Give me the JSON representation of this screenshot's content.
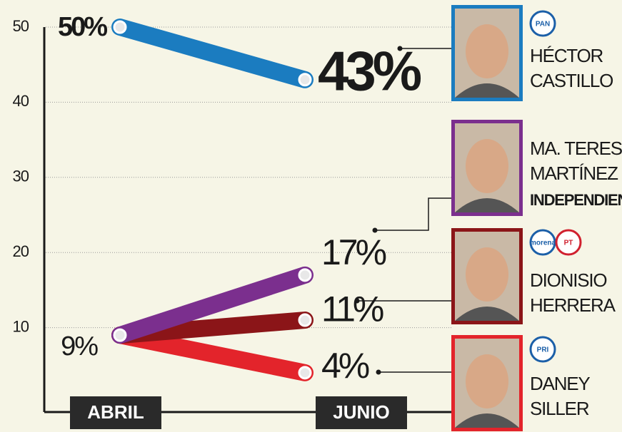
{
  "chart_data": {
    "type": "line",
    "categories": [
      "ABRIL",
      "JUNIO"
    ],
    "ylim": [
      0,
      50
    ],
    "yticks": [
      10,
      20,
      30,
      40,
      50
    ],
    "grid": true,
    "series": [
      {
        "name_lines": [
          "HÉCTOR",
          "CASTILLO"
        ],
        "logos": [
          "PAN"
        ],
        "color": "#1b7cc0",
        "values": [
          50,
          43
        ],
        "value_labels": [
          "50%",
          "43%"
        ]
      },
      {
        "name_lines": [
          "MA. TERESA",
          "MARTÍNEZ"
        ],
        "party": "INDEPENDIENTE",
        "color": "#7b2f8e",
        "values": [
          9,
          17
        ],
        "value_labels": [
          "9%",
          "17%"
        ]
      },
      {
        "name_lines": [
          "DIONISIO",
          "HERRERA"
        ],
        "logos": [
          "morena",
          "PT"
        ],
        "color": "#8b1518",
        "values": [
          9,
          11
        ],
        "value_labels": [
          null,
          "11%"
        ]
      },
      {
        "name_lines": [
          "DANEY",
          "SILLER"
        ],
        "logos": [
          "PRI"
        ],
        "color": "#e3242b",
        "values": [
          9,
          4
        ],
        "value_labels": [
          null,
          "4%"
        ]
      }
    ]
  }
}
